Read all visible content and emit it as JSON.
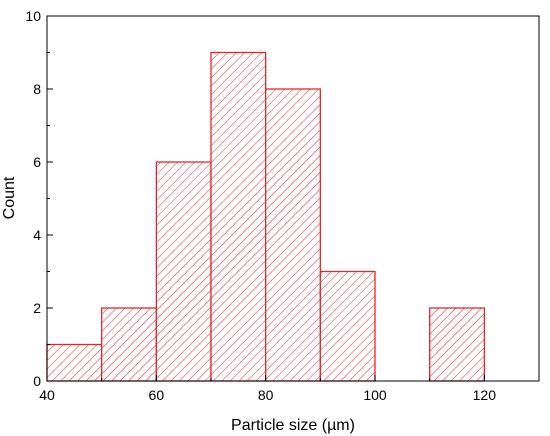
{
  "chart_data": {
    "type": "bar",
    "subtype": "histogram",
    "xlabel": "Particle size (µm)",
    "ylabel": "Count",
    "xlim": [
      40,
      130
    ],
    "ylim": [
      0,
      10
    ],
    "x_ticks": [
      "40",
      "60",
      "80",
      "100",
      "120"
    ],
    "y_ticks": [
      "0",
      "2",
      "4",
      "6",
      "8",
      "10"
    ],
    "bins": [
      {
        "start": 40,
        "end": 50,
        "value": 1
      },
      {
        "start": 50,
        "end": 60,
        "value": 2
      },
      {
        "start": 60,
        "end": 70,
        "value": 6
      },
      {
        "start": 70,
        "end": 80,
        "value": 9
      },
      {
        "start": 80,
        "end": 90,
        "value": 8
      },
      {
        "start": 90,
        "end": 100,
        "value": 3
      },
      {
        "start": 100,
        "end": 110,
        "value": 0
      },
      {
        "start": 110,
        "end": 120,
        "value": 2
      }
    ],
    "bar_style": "diagonal hatch",
    "bar_color": "#e8262a",
    "grid": false,
    "legend": "none"
  }
}
